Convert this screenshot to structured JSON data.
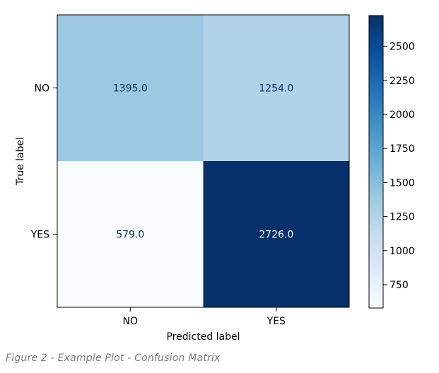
{
  "chart_data": {
    "type": "heatmap",
    "title": "",
    "xlabel": "Predicted label",
    "ylabel": "True label",
    "x_categories": [
      "NO",
      "YES"
    ],
    "y_categories": [
      "NO",
      "YES"
    ],
    "values": [
      [
        1395.0,
        1254.0
      ],
      [
        579.0,
        2726.0
      ]
    ],
    "value_labels": [
      [
        "1395.0",
        "1254.0"
      ],
      [
        "579.0",
        "2726.0"
      ]
    ],
    "colormap": "Blues",
    "colorbar": {
      "range": [
        579,
        2726
      ],
      "ticks": [
        750,
        1000,
        1250,
        1500,
        1750,
        2000,
        2250,
        2500
      ],
      "tick_labels": [
        "750",
        "1000",
        "1250",
        "1500",
        "1750",
        "2000",
        "2250",
        "2500"
      ]
    },
    "colors": {
      "low": "#f7fbff",
      "high": "#08306b",
      "text_on_light": "#08306b",
      "text_on_dark": "#f7fbff"
    }
  },
  "caption": "Figure 2 - Example Plot - Confusion Matrix"
}
